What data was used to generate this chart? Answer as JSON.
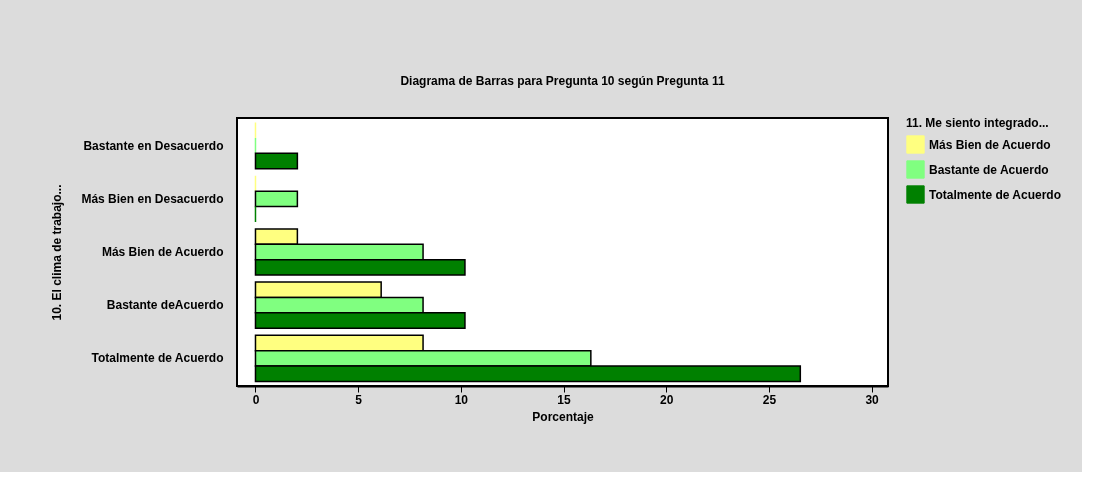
{
  "chart_data": {
    "type": "bar",
    "orientation": "horizontal",
    "title": "Diagrama de Barras para Pregunta 10 según Pregunta 11",
    "xlabel": "Porcentaje",
    "ylabel": "10. El clima de trabajo...",
    "legend_title": "11. Me siento integrado...",
    "categories": [
      "Bastante  en Desacuerdo",
      "Más  Bien en Desacuerdo",
      "Más  Bien de Acuerdo",
      "Bastante  deAcuerdo",
      "Totalmente de Acuerdo"
    ],
    "series": [
      {
        "name": "Más Bien de Acuerdo",
        "color": "#ffff80",
        "values": [
          0,
          0,
          2.04,
          6.12,
          8.16
        ]
      },
      {
        "name": "Bastante de Acuerdo",
        "color": "#80ff80",
        "values": [
          0,
          2.04,
          8.16,
          8.16,
          16.33
        ]
      },
      {
        "name": "Totalmente de Acuerdo",
        "color": "#008000",
        "values": [
          2.04,
          0,
          10.2,
          10.2,
          26.53
        ]
      }
    ],
    "xlim": [
      -0.9,
      30.8
    ],
    "xticks": [
      0,
      5,
      10,
      15,
      20,
      25,
      30
    ],
    "grid": false,
    "legend": "right"
  }
}
